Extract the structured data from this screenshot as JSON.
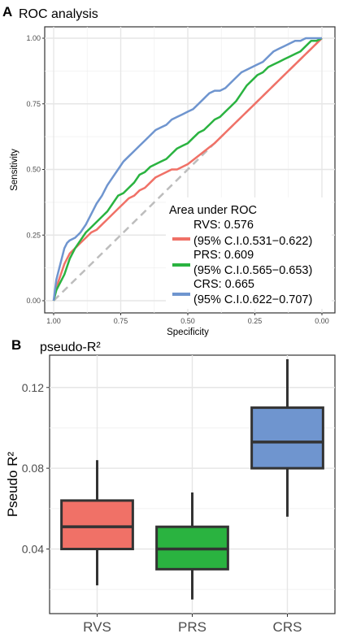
{
  "chart_data": [
    {
      "type": "line",
      "panel": "A",
      "title": "ROC analysis",
      "xlabel": "Specificity",
      "ylabel": "Sensitivity",
      "xlim": [
        1.0,
        0.0
      ],
      "ylim": [
        0.0,
        1.0
      ],
      "x_reversed": true,
      "x_ticks": [
        "1.00",
        "0.75",
        "0.50",
        "0.25",
        "0.00"
      ],
      "y_ticks": [
        "0.00",
        "0.25",
        "0.50",
        "0.75",
        "1.00"
      ],
      "grid": true,
      "legend": {
        "title": "Area under ROC",
        "placement": "bottom-right",
        "entries": [
          {
            "line1": "RVS: 0.576",
            "line2": "(95% C.I.0.531−0.622)"
          },
          {
            "line1": "PRS: 0.609",
            "line2": "(95% C.I.0.565−0.653)"
          },
          {
            "line1": "CRS: 0.665",
            "line2": "(95% C.I.0.622−0.707)"
          }
        ]
      },
      "reference_line": {
        "color": "#bdbdbd",
        "x": [
          1.0,
          0.0
        ],
        "y": [
          0.0,
          1.0
        ]
      },
      "series": [
        {
          "key": "RVS",
          "color": "#f07167",
          "x": [
            1.0,
            0.99,
            0.98,
            0.97,
            0.96,
            0.95,
            0.94,
            0.92,
            0.9,
            0.88,
            0.86,
            0.84,
            0.82,
            0.8,
            0.78,
            0.76,
            0.74,
            0.72,
            0.7,
            0.68,
            0.66,
            0.64,
            0.62,
            0.6,
            0.58,
            0.56,
            0.54,
            0.52,
            0.5,
            0.45,
            0.4,
            0.35,
            0.3,
            0.25,
            0.2,
            0.15,
            0.1,
            0.06,
            0.03,
            0.0
          ],
          "y": [
            0.0,
            0.05,
            0.08,
            0.11,
            0.14,
            0.16,
            0.18,
            0.2,
            0.22,
            0.24,
            0.26,
            0.27,
            0.29,
            0.31,
            0.33,
            0.35,
            0.37,
            0.39,
            0.4,
            0.42,
            0.43,
            0.45,
            0.47,
            0.48,
            0.49,
            0.5,
            0.5,
            0.51,
            0.52,
            0.56,
            0.6,
            0.65,
            0.7,
            0.75,
            0.8,
            0.85,
            0.9,
            0.94,
            0.97,
            1.0
          ]
        },
        {
          "key": "PRS",
          "color": "#2ab340",
          "x": [
            1.0,
            0.99,
            0.98,
            0.97,
            0.96,
            0.95,
            0.94,
            0.92,
            0.9,
            0.88,
            0.86,
            0.84,
            0.82,
            0.8,
            0.78,
            0.76,
            0.74,
            0.72,
            0.7,
            0.68,
            0.66,
            0.64,
            0.62,
            0.6,
            0.58,
            0.56,
            0.54,
            0.52,
            0.5,
            0.48,
            0.46,
            0.44,
            0.42,
            0.4,
            0.38,
            0.36,
            0.34,
            0.32,
            0.3,
            0.28,
            0.26,
            0.24,
            0.22,
            0.2,
            0.18,
            0.16,
            0.14,
            0.12,
            0.1,
            0.08,
            0.06,
            0.04,
            0.02,
            0.0
          ],
          "y": [
            0.0,
            0.04,
            0.06,
            0.08,
            0.1,
            0.13,
            0.16,
            0.2,
            0.23,
            0.26,
            0.28,
            0.3,
            0.32,
            0.34,
            0.37,
            0.4,
            0.41,
            0.43,
            0.45,
            0.48,
            0.49,
            0.51,
            0.52,
            0.53,
            0.54,
            0.56,
            0.58,
            0.59,
            0.6,
            0.62,
            0.64,
            0.65,
            0.67,
            0.69,
            0.7,
            0.72,
            0.74,
            0.76,
            0.79,
            0.82,
            0.84,
            0.86,
            0.87,
            0.89,
            0.9,
            0.91,
            0.92,
            0.93,
            0.94,
            0.95,
            0.97,
            0.99,
            0.99,
            1.0
          ]
        },
        {
          "key": "CRS",
          "color": "#6f95cf",
          "x": [
            1.0,
            0.99,
            0.98,
            0.97,
            0.96,
            0.95,
            0.94,
            0.92,
            0.9,
            0.88,
            0.86,
            0.84,
            0.82,
            0.8,
            0.78,
            0.76,
            0.74,
            0.72,
            0.7,
            0.68,
            0.66,
            0.64,
            0.62,
            0.6,
            0.58,
            0.56,
            0.54,
            0.52,
            0.5,
            0.48,
            0.46,
            0.44,
            0.42,
            0.4,
            0.38,
            0.36,
            0.34,
            0.32,
            0.3,
            0.28,
            0.26,
            0.24,
            0.22,
            0.2,
            0.18,
            0.16,
            0.14,
            0.12,
            0.1,
            0.08,
            0.06,
            0.04,
            0.02,
            0.0
          ],
          "y": [
            0.0,
            0.08,
            0.12,
            0.16,
            0.2,
            0.22,
            0.23,
            0.24,
            0.26,
            0.29,
            0.33,
            0.37,
            0.4,
            0.44,
            0.47,
            0.5,
            0.53,
            0.55,
            0.57,
            0.59,
            0.61,
            0.63,
            0.65,
            0.66,
            0.67,
            0.69,
            0.7,
            0.71,
            0.72,
            0.73,
            0.75,
            0.77,
            0.79,
            0.8,
            0.8,
            0.81,
            0.83,
            0.85,
            0.87,
            0.88,
            0.89,
            0.9,
            0.91,
            0.93,
            0.95,
            0.96,
            0.97,
            0.98,
            0.99,
            0.99,
            1.0,
            1.0,
            1.0,
            1.0
          ]
        }
      ]
    },
    {
      "type": "box",
      "panel": "B",
      "title": "pseudo-R²",
      "xlabel": "",
      "ylabel": "Pseudo R²",
      "ylim": [
        0.008,
        0.136
      ],
      "y_ticks": [
        0.04,
        0.08,
        0.12
      ],
      "y_tick_labels": [
        "0.04",
        "0.08",
        "0.12"
      ],
      "categories": [
        "RVS",
        "PRS",
        "CRS"
      ],
      "grid": true,
      "boxes": [
        {
          "category": "RVS",
          "color": "#f07167",
          "min": 0.022,
          "q1": 0.04,
          "median": 0.051,
          "q3": 0.064,
          "max": 0.084
        },
        {
          "category": "PRS",
          "color": "#2ab340",
          "min": 0.015,
          "q1": 0.03,
          "median": 0.04,
          "q3": 0.051,
          "max": 0.068
        },
        {
          "category": "CRS",
          "color": "#6f95cf",
          "min": 0.056,
          "q1": 0.08,
          "median": 0.093,
          "q3": 0.11,
          "max": 0.134
        }
      ]
    }
  ]
}
